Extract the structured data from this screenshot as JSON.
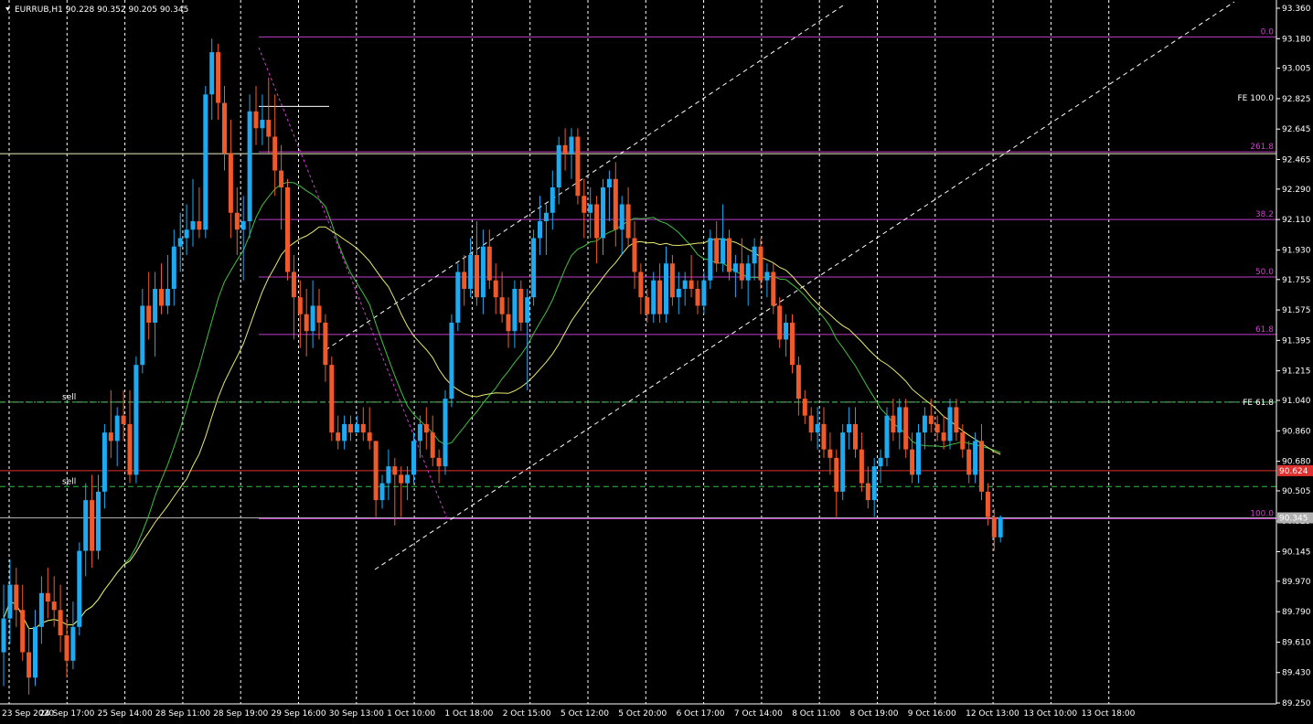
{
  "symbol_header": "EURRUB,H1  90.228 90.352 90.205 90.345",
  "chart_data": {
    "type": "candlestick",
    "symbol": "EURRUB",
    "timeframe": "H1",
    "ohlc_header": {
      "open": 90.228,
      "high": 90.352,
      "low": 90.205,
      "close": 90.345
    },
    "y_ticks": [
      "93.360",
      "93.180",
      "93.005",
      "92.825",
      "92.645",
      "92.465",
      "92.290",
      "92.110",
      "91.930",
      "91.755",
      "91.575",
      "91.395",
      "91.215",
      "91.040",
      "90.860",
      "90.680",
      "90.505",
      "90.325",
      "90.145",
      "89.970",
      "89.790",
      "89.610",
      "89.430",
      "89.250"
    ],
    "ylim": [
      89.25,
      93.36
    ],
    "x_ticks": [
      "23 Sep 2020",
      "24 Sep 17:00",
      "25 Sep 14:00",
      "28 Sep 11:00",
      "28 Sep 19:00",
      "29 Sep 16:00",
      "30 Sep 13:00",
      "1 Oct 10:00",
      "1 Oct 18:00",
      "2 Oct 15:00",
      "5 Oct 12:00",
      "5 Oct 20:00",
      "6 Oct 17:00",
      "7 Oct 14:00",
      "8 Oct 11:00",
      "8 Oct 19:00",
      "9 Oct 16:00",
      "12 Oct 13:00",
      "13 Oct 10:00",
      "13 Oct 18:00"
    ],
    "fibo_levels": [
      {
        "label": "0.0",
        "price": 93.19
      },
      {
        "label": "261.8",
        "price": 92.51
      },
      {
        "label": "38.2",
        "price": 92.11
      },
      {
        "label": "50.0",
        "price": 91.77
      },
      {
        "label": "61.8",
        "price": 91.43
      },
      {
        "label": "100.0",
        "price": 90.34
      }
    ],
    "fe_labels": [
      {
        "label": "FE 100.0",
        "price": 92.83
      },
      {
        "label": "FE 61.8",
        "price": 91.03
      }
    ],
    "sell_labels": [
      {
        "label": "sell",
        "price": 91.03
      },
      {
        "label": "sell",
        "price": 90.53
      }
    ],
    "price_markers": [
      {
        "label": "90.624",
        "price": 90.624,
        "color": "#e03030"
      },
      {
        "label": "90.345",
        "price": 90.345,
        "color": "#b0b0b0"
      }
    ],
    "candles": [
      [
        89.55,
        89.95,
        89.35,
        89.75
      ],
      [
        89.75,
        90.1,
        89.6,
        89.95
      ],
      [
        89.95,
        90.05,
        89.7,
        89.8
      ],
      [
        89.8,
        89.95,
        89.5,
        89.55
      ],
      [
        89.55,
        89.7,
        89.3,
        89.4
      ],
      [
        89.4,
        89.8,
        89.35,
        89.7
      ],
      [
        89.7,
        90.0,
        89.6,
        89.9
      ],
      [
        89.9,
        90.05,
        89.75,
        89.85
      ],
      [
        89.85,
        90.0,
        89.7,
        89.8
      ],
      [
        89.8,
        89.95,
        89.55,
        89.65
      ],
      [
        89.65,
        89.75,
        89.4,
        89.5
      ],
      [
        89.5,
        89.85,
        89.45,
        89.7
      ],
      [
        89.7,
        90.2,
        89.65,
        90.15
      ],
      [
        90.15,
        90.55,
        90.0,
        90.45
      ],
      [
        90.45,
        90.6,
        90.05,
        90.15
      ],
      [
        90.15,
        90.6,
        90.1,
        90.5
      ],
      [
        90.5,
        90.9,
        90.4,
        90.85
      ],
      [
        90.85,
        91.1,
        90.7,
        90.8
      ],
      [
        90.8,
        91.0,
        90.65,
        90.95
      ],
      [
        90.95,
        91.1,
        90.8,
        90.9
      ],
      [
        90.9,
        91.1,
        90.55,
        90.6
      ],
      [
        90.6,
        91.3,
        90.55,
        91.25
      ],
      [
        91.25,
        91.7,
        91.2,
        91.6
      ],
      [
        91.6,
        91.8,
        91.4,
        91.5
      ],
      [
        91.5,
        91.8,
        91.3,
        91.7
      ],
      [
        91.7,
        91.85,
        91.55,
        91.6
      ],
      [
        91.6,
        91.9,
        91.55,
        91.7
      ],
      [
        91.7,
        92.05,
        91.6,
        91.95
      ],
      [
        91.95,
        92.15,
        91.8,
        92.0
      ],
      [
        92.0,
        92.2,
        91.9,
        92.05
      ],
      [
        92.05,
        92.35,
        91.95,
        92.1
      ],
      [
        92.1,
        92.3,
        92.0,
        92.05
      ],
      [
        92.05,
        92.9,
        92.0,
        92.85
      ],
      [
        92.85,
        93.18,
        92.7,
        93.1
      ],
      [
        93.1,
        93.15,
        92.7,
        92.8
      ],
      [
        92.8,
        92.9,
        92.4,
        92.5
      ],
      [
        92.5,
        92.7,
        92.0,
        92.15
      ],
      [
        92.15,
        92.3,
        91.9,
        92.05
      ],
      [
        92.05,
        92.25,
        91.75,
        92.1
      ],
      [
        92.1,
        92.85,
        92.0,
        92.75
      ],
      [
        92.75,
        92.9,
        92.55,
        92.65
      ],
      [
        92.65,
        92.85,
        92.55,
        92.7
      ],
      [
        92.7,
        92.95,
        92.5,
        92.6
      ],
      [
        92.6,
        92.85,
        92.25,
        92.4
      ],
      [
        92.4,
        92.55,
        92.05,
        92.3
      ],
      [
        92.3,
        92.35,
        91.75,
        91.8
      ],
      [
        91.8,
        91.9,
        91.4,
        91.65
      ],
      [
        91.65,
        91.75,
        91.35,
        91.55
      ],
      [
        91.55,
        91.7,
        91.3,
        91.45
      ],
      [
        91.45,
        91.75,
        91.35,
        91.6
      ],
      [
        91.6,
        91.7,
        91.4,
        91.5
      ],
      [
        91.5,
        91.55,
        91.15,
        91.25
      ],
      [
        91.25,
        91.3,
        90.8,
        90.85
      ],
      [
        90.85,
        90.95,
        90.75,
        90.8
      ],
      [
        90.8,
        90.95,
        90.75,
        90.9
      ],
      [
        90.9,
        90.95,
        90.8,
        90.85
      ],
      [
        90.85,
        90.95,
        90.85,
        90.9
      ],
      [
        90.9,
        91.0,
        90.8,
        90.85
      ],
      [
        90.85,
        91.0,
        90.75,
        90.8
      ],
      [
        90.8,
        90.8,
        90.35,
        90.45
      ],
      [
        90.45,
        90.6,
        90.4,
        90.55
      ],
      [
        90.55,
        90.75,
        90.45,
        90.65
      ],
      [
        90.65,
        90.7,
        90.3,
        90.6
      ],
      [
        90.6,
        90.65,
        90.35,
        90.55
      ],
      [
        90.55,
        90.65,
        90.45,
        90.6
      ],
      [
        90.6,
        90.85,
        90.55,
        90.8
      ],
      [
        90.8,
        90.95,
        90.7,
        90.9
      ],
      [
        90.9,
        91.0,
        90.75,
        90.85
      ],
      [
        90.85,
        90.95,
        90.65,
        90.7
      ],
      [
        90.7,
        90.75,
        90.55,
        90.65
      ],
      [
        90.65,
        91.1,
        90.6,
        91.05
      ],
      [
        91.05,
        91.55,
        91.0,
        91.5
      ],
      [
        91.5,
        91.85,
        91.45,
        91.8
      ],
      [
        91.8,
        91.9,
        91.6,
        91.7
      ],
      [
        91.7,
        92.0,
        91.65,
        91.9
      ],
      [
        91.9,
        92.1,
        91.6,
        91.65
      ],
      [
        91.65,
        92.05,
        91.55,
        91.95
      ],
      [
        91.95,
        92.05,
        91.7,
        91.75
      ],
      [
        91.75,
        91.85,
        91.55,
        91.65
      ],
      [
        91.65,
        91.8,
        91.5,
        91.55
      ],
      [
        91.55,
        91.65,
        91.35,
        91.45
      ],
      [
        91.45,
        91.75,
        91.35,
        91.7
      ],
      [
        91.7,
        91.75,
        91.45,
        91.5
      ],
      [
        91.5,
        91.7,
        91.1,
        91.65
      ],
      [
        91.65,
        92.05,
        91.6,
        92.0
      ],
      [
        92.0,
        92.25,
        91.9,
        92.1
      ],
      [
        92.1,
        92.2,
        91.9,
        92.15
      ],
      [
        92.15,
        92.4,
        92.05,
        92.3
      ],
      [
        92.3,
        92.6,
        92.2,
        92.55
      ],
      [
        92.55,
        92.65,
        92.4,
        92.5
      ],
      [
        92.5,
        92.65,
        92.35,
        92.6
      ],
      [
        92.6,
        92.65,
        92.2,
        92.25
      ],
      [
        92.25,
        92.35,
        92.0,
        92.15
      ],
      [
        92.15,
        92.3,
        92.0,
        92.2
      ],
      [
        92.2,
        92.25,
        91.85,
        92.0
      ],
      [
        92.0,
        92.35,
        91.9,
        92.3
      ],
      [
        92.3,
        92.4,
        92.1,
        92.35
      ],
      [
        92.35,
        92.45,
        91.95,
        92.05
      ],
      [
        92.05,
        92.25,
        91.9,
        92.2
      ],
      [
        92.2,
        92.3,
        91.95,
        92.0
      ],
      [
        92.0,
        92.1,
        91.7,
        91.8
      ],
      [
        91.8,
        91.85,
        91.55,
        91.65
      ],
      [
        91.65,
        91.7,
        91.5,
        91.55
      ],
      [
        91.55,
        91.8,
        91.5,
        91.75
      ],
      [
        91.75,
        91.85,
        91.5,
        91.55
      ],
      [
        91.55,
        91.95,
        91.5,
        91.85
      ],
      [
        91.85,
        91.9,
        91.6,
        91.65
      ],
      [
        91.65,
        91.8,
        91.55,
        91.7
      ],
      [
        91.7,
        91.8,
        91.6,
        91.75
      ],
      [
        91.75,
        91.9,
        91.65,
        91.7
      ],
      [
        91.7,
        91.75,
        91.55,
        91.6
      ],
      [
        91.6,
        91.8,
        91.55,
        91.75
      ],
      [
        91.75,
        92.05,
        91.7,
        92.0
      ],
      [
        92.0,
        92.1,
        91.8,
        91.85
      ],
      [
        91.85,
        92.2,
        91.8,
        92.0
      ],
      [
        92.0,
        92.05,
        91.75,
        91.8
      ],
      [
        91.8,
        91.9,
        91.65,
        91.85
      ],
      [
        91.85,
        92.0,
        91.7,
        91.75
      ],
      [
        91.75,
        91.9,
        91.6,
        91.85
      ],
      [
        91.85,
        92.0,
        91.75,
        91.95
      ],
      [
        91.95,
        92.0,
        91.7,
        91.75
      ],
      [
        91.75,
        91.85,
        91.65,
        91.8
      ],
      [
        91.8,
        91.85,
        91.55,
        91.6
      ],
      [
        91.6,
        91.65,
        91.35,
        91.4
      ],
      [
        91.4,
        91.55,
        91.3,
        91.5
      ],
      [
        91.5,
        91.55,
        91.2,
        91.25
      ],
      [
        91.25,
        91.3,
        90.95,
        91.05
      ],
      [
        91.05,
        91.1,
        90.9,
        90.95
      ],
      [
        90.95,
        91.0,
        90.8,
        90.85
      ],
      [
        90.85,
        91.0,
        90.75,
        90.9
      ],
      [
        90.9,
        91.0,
        90.7,
        90.75
      ],
      [
        90.75,
        90.85,
        90.6,
        90.7
      ],
      [
        90.7,
        90.75,
        90.35,
        90.5
      ],
      [
        90.5,
        90.9,
        90.45,
        90.85
      ],
      [
        90.85,
        91.0,
        90.75,
        90.9
      ],
      [
        90.9,
        91.0,
        90.7,
        90.75
      ],
      [
        90.75,
        90.85,
        90.5,
        90.55
      ],
      [
        90.55,
        90.65,
        90.4,
        90.45
      ],
      [
        90.45,
        90.7,
        90.35,
        90.65
      ],
      [
        90.65,
        90.75,
        90.55,
        90.7
      ],
      [
        90.7,
        91.0,
        90.65,
        90.95
      ],
      [
        90.95,
        91.05,
        90.8,
        90.85
      ],
      [
        90.85,
        91.05,
        90.75,
        91.0
      ],
      [
        91.0,
        91.05,
        90.7,
        90.75
      ],
      [
        90.75,
        90.85,
        90.55,
        90.6
      ],
      [
        90.6,
        90.9,
        90.55,
        90.85
      ],
      [
        90.85,
        91.0,
        90.75,
        90.95
      ],
      [
        90.95,
        91.05,
        90.85,
        90.9
      ],
      [
        90.9,
        90.95,
        90.8,
        90.85
      ],
      [
        90.85,
        90.95,
        90.75,
        90.8
      ],
      [
        90.8,
        91.05,
        90.75,
        91.0
      ],
      [
        91.0,
        91.05,
        90.8,
        90.85
      ],
      [
        90.85,
        90.9,
        90.7,
        90.75
      ],
      [
        90.75,
        90.8,
        90.55,
        90.6
      ],
      [
        90.6,
        90.85,
        90.55,
        90.8
      ],
      [
        90.8,
        90.9,
        90.45,
        90.5
      ],
      [
        90.5,
        90.55,
        90.3,
        90.35
      ],
      [
        90.35,
        90.4,
        90.15,
        90.23
      ],
      [
        90.23,
        90.36,
        90.2,
        90.35
      ]
    ]
  }
}
